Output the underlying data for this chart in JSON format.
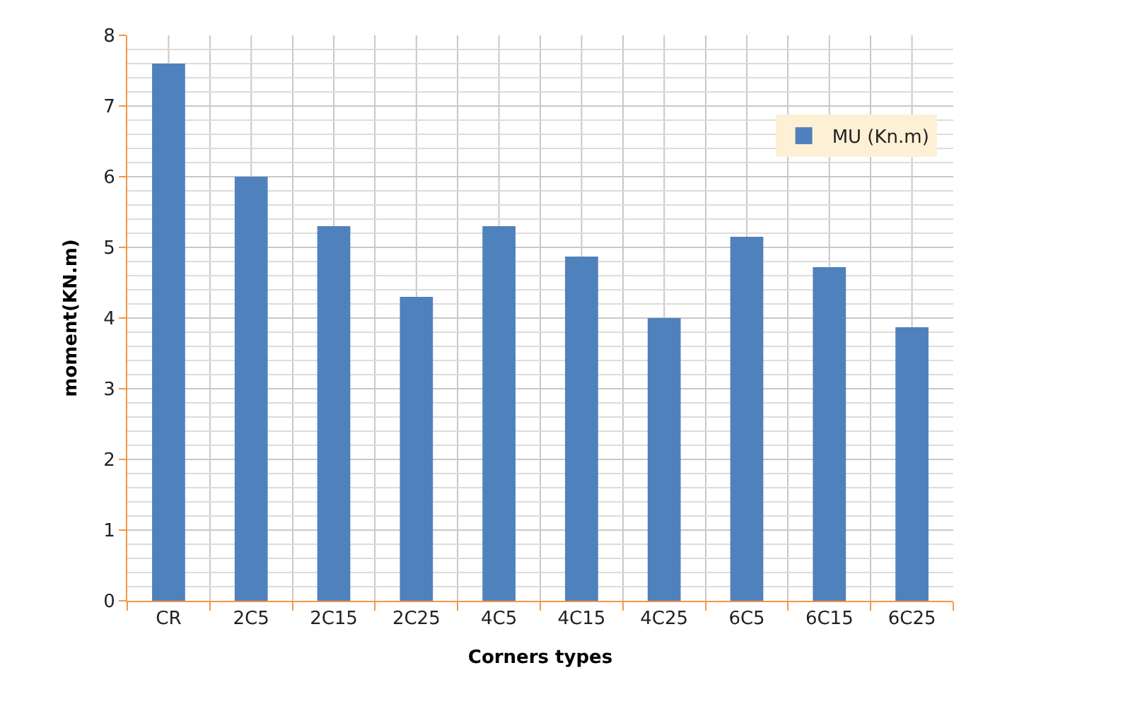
{
  "chart_data": {
    "type": "bar",
    "xlabel": "Corners types",
    "ylabel": "moment(KN.m)",
    "categories": [
      "CR",
      "2C5",
      "2C15",
      "2C25",
      "4C5",
      "4C15",
      "4C25",
      "6C5",
      "6C15",
      "6C25"
    ],
    "series": [
      {
        "name": "MU (Kn.m)",
        "color": "#4f81bd",
        "values": [
          7.6,
          6.0,
          5.3,
          4.3,
          5.3,
          4.87,
          4.0,
          5.15,
          4.72,
          3.87
        ]
      }
    ],
    "ylim": [
      0,
      8
    ],
    "yticks": [
      0,
      1,
      2,
      3,
      4,
      5,
      6,
      7,
      8
    ],
    "grid": true,
    "legend": "top right"
  }
}
